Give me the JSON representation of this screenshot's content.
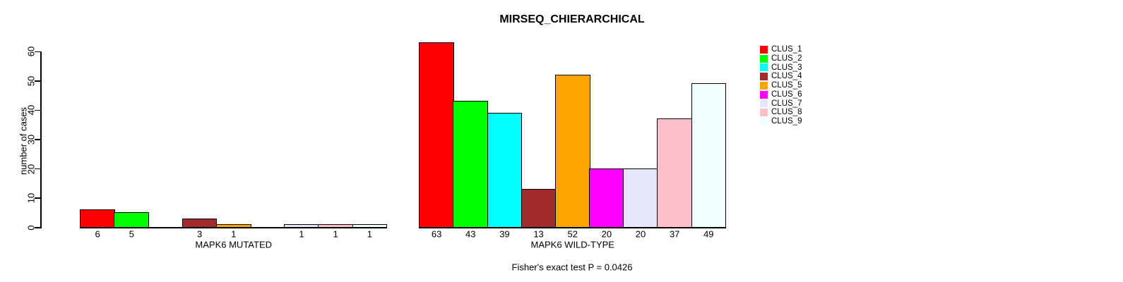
{
  "chart_data": {
    "type": "bar",
    "title": "MIRSEQ_CHIERARCHICAL",
    "ylabel": "number of cases",
    "xlabel": "",
    "yticks": [
      0,
      10,
      20,
      30,
      40,
      50,
      60
    ],
    "ylim": [
      0,
      63
    ],
    "grid": false,
    "legend_position": "top-right",
    "series": [
      {
        "name": "CLUS_1",
        "color": "#FF0000"
      },
      {
        "name": "CLUS_2",
        "color": "#00FF00"
      },
      {
        "name": "CLUS_3",
        "color": "#00FFFF"
      },
      {
        "name": "CLUS_4",
        "color": "#A52A2A"
      },
      {
        "name": "CLUS_5",
        "color": "#FFA500"
      },
      {
        "name": "CLUS_6",
        "color": "#FF00FF"
      },
      {
        "name": "CLUS_7",
        "color": "#E6E6FA"
      },
      {
        "name": "CLUS_8",
        "color": "#FFC0CB"
      },
      {
        "name": "CLUS_9",
        "color": "#F0FFFF"
      }
    ],
    "groups": [
      {
        "label": "MAPK6 MUTATED",
        "values": [
          6,
          5,
          0,
          3,
          1,
          0,
          1,
          1,
          1
        ]
      },
      {
        "label": "MAPK6 WILD-TYPE",
        "values": [
          63,
          43,
          39,
          13,
          52,
          20,
          20,
          37,
          49
        ]
      }
    ],
    "bar_border_color": "#000000",
    "background": "#FFFFFF",
    "annotation": "Fisher's exact test P = 0.0426"
  }
}
